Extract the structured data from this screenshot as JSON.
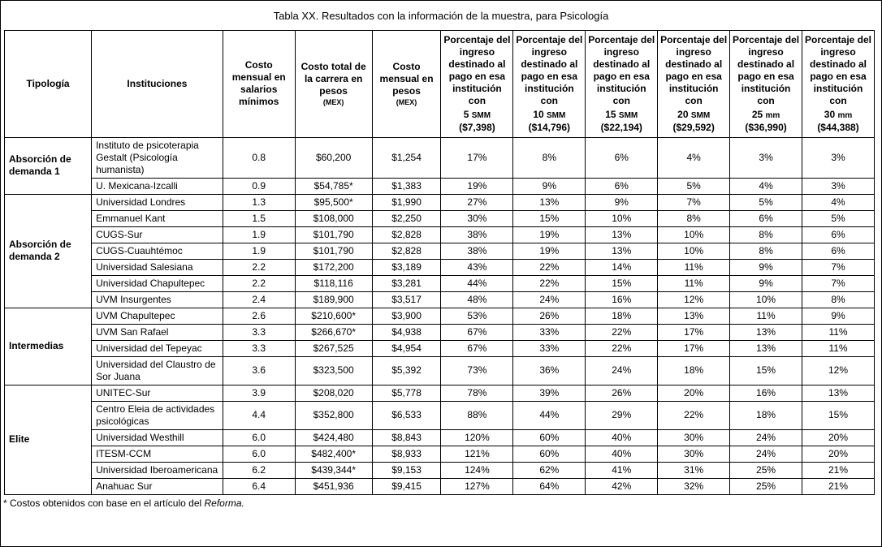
{
  "title": "Tabla XX. Resultados con la información de la muestra, para Psicología",
  "table": {
    "base_columns": [
      {
        "label": "Tipología",
        "sub": ""
      },
      {
        "label": "Instituciones",
        "sub": ""
      },
      {
        "label": "Costo mensual en salarios mínimos",
        "sub": ""
      },
      {
        "label": "Costo total de la carrera en pesos",
        "sub": "(MEX)"
      },
      {
        "label": "Costo mensual en pesos",
        "sub": "(MEX)"
      }
    ],
    "pct_prefix": "Porcentaje del ingreso destinado al pago en esa institución con",
    "pct_columns": [
      {
        "qty": "5",
        "unit": "SMM",
        "amount": "($7,398)"
      },
      {
        "qty": "10",
        "unit": "SMM",
        "amount": "($14,796)"
      },
      {
        "qty": "15",
        "unit": "SMM",
        "amount": "($22,194)"
      },
      {
        "qty": "20",
        "unit": "SMM",
        "amount": "($29,592)"
      },
      {
        "qty": "25",
        "unit": "mm",
        "amount": "($36,990)"
      },
      {
        "qty": "30",
        "unit": "mm",
        "amount": "($44,388)"
      }
    ],
    "groups": [
      {
        "tipologia": "Absorción de demanda 1",
        "rows": [
          {
            "institucion": "Instituto de psicoterapia Gestalt (Psicología humanista)",
            "smm": "0.8",
            "total": "$60,200",
            "mensual": "$1,254",
            "pct": [
              "17%",
              "8%",
              "6%",
              "4%",
              "3%",
              "3%"
            ]
          },
          {
            "institucion": "U. Mexicana-Izcalli",
            "smm": "0.9",
            "total": "$54,785*",
            "mensual": "$1,383",
            "pct": [
              "19%",
              "9%",
              "6%",
              "5%",
              "4%",
              "3%"
            ]
          }
        ]
      },
      {
        "tipologia": "Absorción de demanda 2",
        "rows": [
          {
            "institucion": "Universidad Londres",
            "smm": "1.3",
            "total": "$95,500*",
            "mensual": "$1,990",
            "pct": [
              "27%",
              "13%",
              "9%",
              "7%",
              "5%",
              "4%"
            ]
          },
          {
            "institucion": "Emmanuel Kant",
            "smm": "1.5",
            "total": "$108,000",
            "mensual": "$2,250",
            "pct": [
              "30%",
              "15%",
              "10%",
              "8%",
              "6%",
              "5%"
            ]
          },
          {
            "institucion": "CUGS-Sur",
            "smm": "1.9",
            "total": "$101,790",
            "mensual": "$2,828",
            "pct": [
              "38%",
              "19%",
              "13%",
              "10%",
              "8%",
              "6%"
            ]
          },
          {
            "institucion": "CUGS-Cuauhtémoc",
            "smm": "1.9",
            "total": "$101,790",
            "mensual": "$2,828",
            "pct": [
              "38%",
              "19%",
              "13%",
              "10%",
              "8%",
              "6%"
            ]
          },
          {
            "institucion": "Universidad Salesiana",
            "smm": "2.2",
            "total": "$172,200",
            "mensual": "$3,189",
            "pct": [
              "43%",
              "22%",
              "14%",
              "11%",
              "9%",
              "7%"
            ]
          },
          {
            "institucion": "Universidad Chapultepec",
            "smm": "2.2",
            "total": "$118,116",
            "mensual": "$3,281",
            "pct": [
              "44%",
              "22%",
              "15%",
              "11%",
              "9%",
              "7%"
            ]
          },
          {
            "institucion": "UVM Insurgentes",
            "smm": "2.4",
            "total": "$189,900",
            "mensual": "$3,517",
            "pct": [
              "48%",
              "24%",
              "16%",
              "12%",
              "10%",
              "8%"
            ]
          }
        ]
      },
      {
        "tipologia": "Intermedias",
        "rows": [
          {
            "institucion": "UVM Chapultepec",
            "smm": "2.6",
            "total": "$210,600*",
            "mensual": "$3,900",
            "pct": [
              "53%",
              "26%",
              "18%",
              "13%",
              "11%",
              "9%"
            ]
          },
          {
            "institucion": "UVM San Rafael",
            "smm": "3.3",
            "total": "$266,670*",
            "mensual": "$4,938",
            "pct": [
              "67%",
              "33%",
              "22%",
              "17%",
              "13%",
              "11%"
            ]
          },
          {
            "institucion": "Universidad del Tepeyac",
            "smm": "3.3",
            "total": "$267,525",
            "mensual": "$4,954",
            "pct": [
              "67%",
              "33%",
              "22%",
              "17%",
              "13%",
              "11%"
            ]
          },
          {
            "institucion": "Universidad del Claustro de Sor Juana",
            "smm": "3.6",
            "total": "$323,500",
            "mensual": "$5,392",
            "pct": [
              "73%",
              "36%",
              "24%",
              "18%",
              "15%",
              "12%"
            ]
          }
        ]
      },
      {
        "tipologia": "Elite",
        "rows": [
          {
            "institucion": "UNITEC-Sur",
            "smm": "3.9",
            "total": "$208,020",
            "mensual": "$5,778",
            "pct": [
              "78%",
              "39%",
              "26%",
              "20%",
              "16%",
              "13%"
            ]
          },
          {
            "institucion": "Centro Eleia de actividades psicológicas",
            "smm": "4.4",
            "total": "$352,800",
            "mensual": "$6,533",
            "pct": [
              "88%",
              "44%",
              "29%",
              "22%",
              "18%",
              "15%"
            ]
          },
          {
            "institucion": "Universidad Westhill",
            "smm": "6.0",
            "total": "$424,480",
            "mensual": "$8,843",
            "pct": [
              "120%",
              "60%",
              "40%",
              "30%",
              "24%",
              "20%"
            ]
          },
          {
            "institucion": "ITESM-CCM",
            "smm": "6.0",
            "total": "$482,400*",
            "mensual": "$8,933",
            "pct": [
              "121%",
              "60%",
              "40%",
              "30%",
              "24%",
              "20%"
            ]
          },
          {
            "institucion": "Universidad Iberoamericana",
            "smm": "6.2",
            "total": "$439,344*",
            "mensual": "$9,153",
            "pct": [
              "124%",
              "62%",
              "41%",
              "31%",
              "25%",
              "21%"
            ]
          },
          {
            "institucion": "Anahuac Sur",
            "smm": "6.4",
            "total": "$451,936",
            "mensual": "$9,415",
            "pct": [
              "127%",
              "64%",
              "42%",
              "32%",
              "25%",
              "21%"
            ]
          }
        ]
      }
    ]
  },
  "footnote": {
    "text": "* Costos obtenidos con base en el artículo del ",
    "source": "Reforma."
  }
}
